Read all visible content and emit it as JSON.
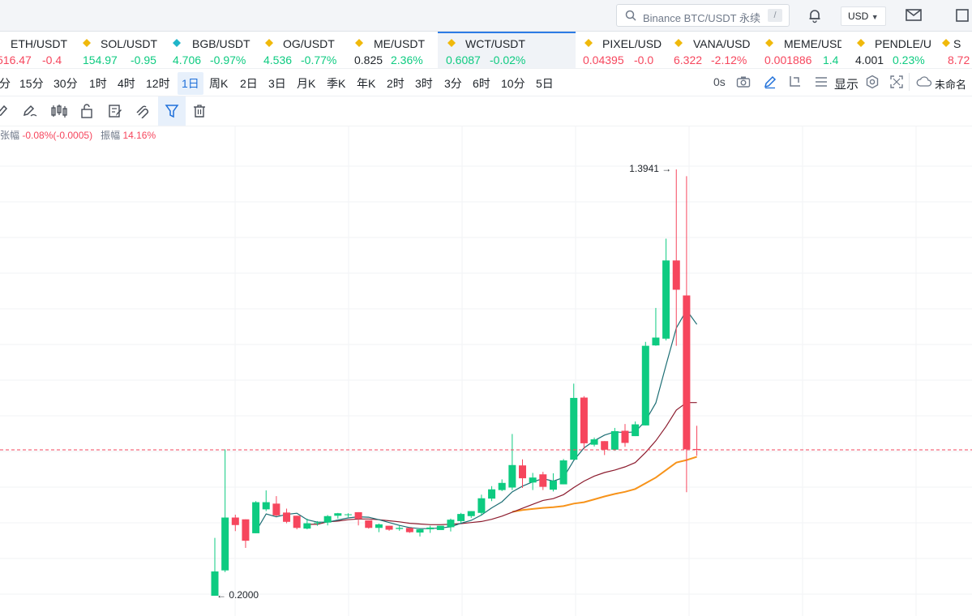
{
  "topbar": {
    "search_placeholder": "Binance BTC/USDT 永续",
    "search_shortcut": "/",
    "currency": "USD"
  },
  "tickers": [
    {
      "name": "ETH/USDT",
      "price": "516.47",
      "change": "-0.4",
      "dir": "dn"
    },
    {
      "name": "SOL/USDT",
      "price": "154.97",
      "change": "-0.95",
      "dir": "dn"
    },
    {
      "name": "BGB/USDT",
      "price": "4.706",
      "change": "-0.97%",
      "dir": "dn"
    },
    {
      "name": "OG/USDT",
      "price": "4.536",
      "change": "-0.77%",
      "dir": "dn"
    },
    {
      "name": "ME/USDT",
      "price": "0.825",
      "change": "2.36%",
      "dir": "up"
    },
    {
      "name": "WCT/USDT",
      "price": "0.6087",
      "change": "-0.02%",
      "dir": "dn"
    },
    {
      "name": "PIXEL/USD",
      "price": "0.04395",
      "change": "-0.0",
      "dir": "dn"
    },
    {
      "name": "VANA/USD",
      "price": "6.322",
      "change": "-2.12%",
      "dir": "dn"
    },
    {
      "name": "MEME/USD",
      "price": "0.001886",
      "change": "1.4",
      "dir": "up"
    },
    {
      "name": "PENDLE/U",
      "price": "4.001",
      "change": "0.23%",
      "dir": "up"
    },
    {
      "name": "S",
      "price": "8.72",
      "change": "",
      "dir": "dn"
    }
  ],
  "timeframes": [
    "分",
    "15分",
    "30分",
    "1时",
    "4时",
    "12时",
    "1日",
    "周K",
    "2日",
    "3日",
    "月K",
    "季K",
    "年K",
    "2时",
    "3时",
    "3分",
    "6时",
    "10分",
    "5日"
  ],
  "selected_timeframe": "1日",
  "toolbar_right": {
    "countdown": "0s",
    "display_label": "显示",
    "layout_name": "未命名"
  },
  "info": {
    "change_label": "张幅",
    "change_value": "-0.08%(-0.0005)",
    "amplitude_label": "振幅",
    "amplitude_value": "14.16%"
  },
  "colors": {
    "up": "#0ecb81",
    "down": "#f6465d",
    "ma_short": "#1c6e74",
    "ma_mid": "#8c1c2e",
    "ma_long": "#f7931a",
    "accent": "#1e6fd9"
  },
  "chart_data": {
    "type": "candlestick",
    "symbol": "WCT/USDT",
    "interval": "1日",
    "ylim": [
      0.1,
      1.5
    ],
    "current_price": 0.6087,
    "high_label": "1.3941",
    "low_label": "0.2000",
    "candles": [
      {
        "o": 0.2,
        "h": 0.362,
        "l": 0.2,
        "c": 0.268
      },
      {
        "o": 0.271,
        "h": 0.61,
        "l": 0.266,
        "c": 0.419
      },
      {
        "o": 0.419,
        "h": 0.427,
        "l": 0.381,
        "c": 0.398
      },
      {
        "o": 0.414,
        "h": 0.414,
        "l": 0.334,
        "c": 0.354
      },
      {
        "o": 0.375,
        "h": 0.465,
        "l": 0.375,
        "c": 0.462
      },
      {
        "o": 0.442,
        "h": 0.495,
        "l": 0.437,
        "c": 0.462
      },
      {
        "o": 0.458,
        "h": 0.479,
        "l": 0.422,
        "c": 0.425
      },
      {
        "o": 0.433,
        "h": 0.444,
        "l": 0.403,
        "c": 0.407
      },
      {
        "o": 0.424,
        "h": 0.424,
        "l": 0.386,
        "c": 0.39
      },
      {
        "o": 0.388,
        "h": 0.416,
        "l": 0.386,
        "c": 0.403
      },
      {
        "o": 0.404,
        "h": 0.409,
        "l": 0.396,
        "c": 0.405
      },
      {
        "o": 0.405,
        "h": 0.426,
        "l": 0.397,
        "c": 0.423
      },
      {
        "o": 0.424,
        "h": 0.432,
        "l": 0.416,
        "c": 0.431
      },
      {
        "o": 0.427,
        "h": 0.431,
        "l": 0.42,
        "c": 0.428
      },
      {
        "o": 0.434,
        "h": 0.434,
        "l": 0.397,
        "c": 0.416
      },
      {
        "o": 0.411,
        "h": 0.411,
        "l": 0.388,
        "c": 0.39
      },
      {
        "o": 0.39,
        "h": 0.402,
        "l": 0.378,
        "c": 0.4
      },
      {
        "o": 0.396,
        "h": 0.396,
        "l": 0.382,
        "c": 0.385
      },
      {
        "o": 0.387,
        "h": 0.396,
        "l": 0.382,
        "c": 0.39
      },
      {
        "o": 0.39,
        "h": 0.39,
        "l": 0.376,
        "c": 0.378
      },
      {
        "o": 0.377,
        "h": 0.389,
        "l": 0.366,
        "c": 0.386
      },
      {
        "o": 0.386,
        "h": 0.396,
        "l": 0.376,
        "c": 0.391
      },
      {
        "o": 0.384,
        "h": 0.384,
        "l": 0.384,
        "c": 0.396
      },
      {
        "o": 0.392,
        "h": 0.416,
        "l": 0.38,
        "c": 0.413
      },
      {
        "o": 0.409,
        "h": 0.432,
        "l": 0.404,
        "c": 0.429
      },
      {
        "o": 0.423,
        "h": 0.437,
        "l": 0.418,
        "c": 0.437
      },
      {
        "o": 0.432,
        "h": 0.483,
        "l": 0.424,
        "c": 0.473
      },
      {
        "o": 0.472,
        "h": 0.507,
        "l": 0.465,
        "c": 0.498
      },
      {
        "o": 0.496,
        "h": 0.526,
        "l": 0.493,
        "c": 0.516
      },
      {
        "o": 0.503,
        "h": 0.653,
        "l": 0.496,
        "c": 0.566
      },
      {
        "o": 0.565,
        "h": 0.582,
        "l": 0.502,
        "c": 0.529
      },
      {
        "o": 0.517,
        "h": 0.544,
        "l": 0.496,
        "c": 0.531
      },
      {
        "o": 0.54,
        "h": 0.547,
        "l": 0.496,
        "c": 0.505
      },
      {
        "o": 0.497,
        "h": 0.543,
        "l": 0.492,
        "c": 0.522
      },
      {
        "o": 0.512,
        "h": 0.583,
        "l": 0.512,
        "c": 0.579
      },
      {
        "o": 0.581,
        "h": 0.794,
        "l": 0.581,
        "c": 0.754
      },
      {
        "o": 0.755,
        "h": 0.759,
        "l": 0.61,
        "c": 0.627
      },
      {
        "o": 0.623,
        "h": 0.643,
        "l": 0.618,
        "c": 0.638
      },
      {
        "o": 0.633,
        "h": 0.633,
        "l": 0.594,
        "c": 0.609
      },
      {
        "o": 0.609,
        "h": 0.67,
        "l": 0.606,
        "c": 0.661
      },
      {
        "o": 0.662,
        "h": 0.681,
        "l": 0.617,
        "c": 0.628
      },
      {
        "o": 0.647,
        "h": 0.688,
        "l": 0.647,
        "c": 0.68
      },
      {
        "o": 0.677,
        "h": 0.911,
        "l": 0.677,
        "c": 0.9
      },
      {
        "o": 0.901,
        "h": 1.006,
        "l": 0.9,
        "c": 0.923
      },
      {
        "o": 0.92,
        "h": 1.2,
        "l": 0.915,
        "c": 1.139
      },
      {
        "o": 1.139,
        "h": 1.394,
        "l": 0.9,
        "c": 1.057
      },
      {
        "o": 1.041,
        "h": 1.375,
        "l": 0.49,
        "c": 0.61
      },
      {
        "o": 0.611,
        "h": 0.676,
        "l": 0.592,
        "c": 0.609
      }
    ],
    "ma_short": [
      null,
      null,
      null,
      null,
      0.38,
      0.429,
      0.421,
      0.428,
      0.431,
      0.413,
      0.406,
      0.406,
      0.412,
      0.418,
      0.421,
      0.42,
      0.413,
      0.405,
      0.397,
      0.391,
      0.388,
      0.388,
      0.39,
      0.393,
      0.403,
      0.411,
      0.426,
      0.446,
      0.463,
      0.491,
      0.507,
      0.519,
      0.528,
      0.521,
      0.531,
      0.579,
      0.614,
      0.634,
      0.65,
      0.659,
      0.657,
      0.659,
      0.69,
      0.74,
      0.846,
      0.95,
      1.0,
      0.96
    ],
    "ma_mid": [
      null,
      null,
      null,
      null,
      null,
      null,
      null,
      null,
      null,
      0.4,
      0.4,
      0.407,
      0.409,
      0.413,
      0.415,
      0.415,
      0.413,
      0.41,
      0.407,
      0.403,
      0.401,
      0.399,
      0.399,
      0.4,
      0.402,
      0.405,
      0.408,
      0.414,
      0.423,
      0.434,
      0.445,
      0.456,
      0.467,
      0.472,
      0.483,
      0.503,
      0.521,
      0.535,
      0.545,
      0.552,
      0.561,
      0.573,
      0.601,
      0.634,
      0.674,
      0.72,
      0.741,
      0.741
    ],
    "ma_long": [
      null,
      null,
      null,
      null,
      null,
      null,
      null,
      null,
      null,
      null,
      null,
      null,
      null,
      null,
      null,
      null,
      null,
      null,
      null,
      null,
      null,
      null,
      null,
      null,
      null,
      null,
      null,
      null,
      null,
      0.435,
      0.44,
      0.443,
      0.446,
      0.448,
      0.451,
      0.458,
      0.462,
      0.47,
      0.478,
      0.485,
      0.491,
      0.499,
      0.515,
      0.531,
      0.552,
      0.573,
      0.58,
      0.589
    ]
  }
}
